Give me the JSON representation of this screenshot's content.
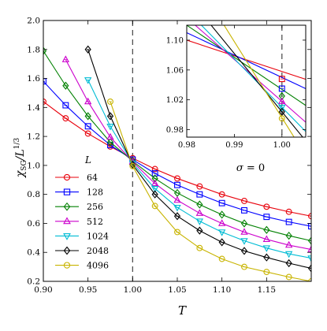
{
  "chart_data": [
    {
      "type": "line",
      "title": "",
      "xlabel": "T",
      "ylabel": "χSG/L^1/3",
      "ylabel_main": "χ",
      "ylabel_sub": "SG",
      "ylabel_mid": "/L",
      "ylabel_sup": "1/3",
      "xlim": [
        0.9,
        1.2
      ],
      "ylim": [
        0.2,
        2.0
      ],
      "xticks": [
        0.9,
        0.95,
        1.0,
        1.05,
        1.1,
        1.15
      ],
      "xtick_labels": [
        "0.90",
        "0.95",
        "1.00",
        "1.05",
        "1.10",
        "1.15"
      ],
      "yticks": [
        0.2,
        0.4,
        0.6,
        0.8,
        1.0,
        1.2,
        1.4,
        1.6,
        1.8,
        2.0
      ],
      "ytick_labels": [
        "0.2",
        "0.4",
        "0.6",
        "0.8",
        "1.0",
        "1.2",
        "1.4",
        "1.6",
        "1.8",
        "2.0"
      ],
      "vline_x": 1.0,
      "vline_style": "dashed",
      "legend_title": "L",
      "legend_position": "lower-left",
      "series": [
        {
          "name": "64",
          "color": "#e8000b",
          "marker": "circle",
          "x": [
            0.9,
            0.925,
            0.95,
            0.975,
            1.0,
            1.025,
            1.05,
            1.075,
            1.1,
            1.125,
            1.15,
            1.175,
            1.2
          ],
          "y": [
            1.44,
            1.325,
            1.22,
            1.13,
            1.05,
            0.975,
            0.91,
            0.855,
            0.8,
            0.755,
            0.715,
            0.68,
            0.65
          ]
        },
        {
          "name": "128",
          "color": "#0000ff",
          "marker": "square",
          "x": [
            0.9,
            0.925,
            0.95,
            0.975,
            1.0,
            1.025,
            1.05,
            1.075,
            1.1,
            1.125,
            1.15,
            1.175,
            1.2
          ],
          "y": [
            1.58,
            1.415,
            1.27,
            1.14,
            1.04,
            0.945,
            0.865,
            0.8,
            0.74,
            0.69,
            0.645,
            0.61,
            0.58
          ]
        },
        {
          "name": "256",
          "color": "#008000",
          "marker": "diamond",
          "x": [
            0.9,
            0.925,
            0.95,
            0.975,
            1.0,
            1.025,
            1.05,
            1.075,
            1.1,
            1.125,
            1.15,
            1.175,
            1.2
          ],
          "y": [
            1.79,
            1.55,
            1.34,
            1.16,
            1.03,
            0.91,
            0.81,
            0.73,
            0.66,
            0.6,
            0.555,
            0.515,
            0.48
          ]
        },
        {
          "name": "512",
          "color": "#cc00cc",
          "marker": "triangle-up",
          "x": [
            0.925,
            0.95,
            0.975,
            1.0,
            1.025,
            1.05,
            1.075,
            1.1,
            1.125,
            1.15,
            1.175,
            1.2
          ],
          "y": [
            1.73,
            1.44,
            1.195,
            1.025,
            0.875,
            0.76,
            0.67,
            0.6,
            0.54,
            0.49,
            0.45,
            0.42
          ]
        },
        {
          "name": "1024",
          "color": "#00bcd4",
          "marker": "triangle-down",
          "x": [
            0.95,
            0.975,
            1.0,
            1.025,
            1.05,
            1.075,
            1.1,
            1.125,
            1.15,
            1.175,
            1.2
          ],
          "y": [
            1.59,
            1.27,
            1.015,
            0.84,
            0.71,
            0.615,
            0.54,
            0.48,
            0.43,
            0.39,
            0.36
          ]
        },
        {
          "name": "2048",
          "color": "#000000",
          "marker": "diamond",
          "x": [
            0.95,
            0.975,
            1.0,
            1.025,
            1.05,
            1.075,
            1.1,
            1.125,
            1.15,
            1.175,
            1.2
          ],
          "y": [
            1.8,
            1.34,
            1.005,
            0.8,
            0.65,
            0.55,
            0.47,
            0.41,
            0.365,
            0.325,
            0.29
          ]
        },
        {
          "name": "4096",
          "color": "#c8b400",
          "marker": "circle",
          "x": [
            0.975,
            1.0,
            1.025,
            1.05,
            1.075,
            1.1,
            1.125,
            1.15,
            1.175,
            1.2
          ],
          "y": [
            1.44,
            0.995,
            0.72,
            0.54,
            0.43,
            0.355,
            0.3,
            0.265,
            0.23,
            0.2
          ]
        }
      ]
    },
    {
      "type": "line",
      "title": "",
      "annotation": "σ = 0",
      "xlim": [
        0.98,
        1.005
      ],
      "ylim": [
        0.97,
        1.12
      ],
      "xticks": [
        0.98,
        0.99,
        1.0
      ],
      "xtick_labels": [
        "0.98",
        "0.99",
        "1.00"
      ],
      "yticks": [
        0.98,
        1.02,
        1.06,
        1.1
      ],
      "ytick_labels": [
        "0.98",
        "1.02",
        "1.06",
        "1.10"
      ],
      "vline_x": 1.0,
      "vline_style": "dashed",
      "series": [
        {
          "name": "64",
          "color": "#e8000b",
          "marker": "square",
          "x": [
            1.0
          ],
          "y": [
            1.048
          ]
        },
        {
          "name": "128",
          "color": "#0000ff",
          "marker": "square",
          "x": [
            1.0
          ],
          "y": [
            1.035
          ]
        },
        {
          "name": "256",
          "color": "#008000",
          "marker": "diamond",
          "x": [
            1.0
          ],
          "y": [
            1.025
          ]
        },
        {
          "name": "512",
          "color": "#cc00cc",
          "marker": "triangle-up",
          "x": [
            1.0
          ],
          "y": [
            1.018
          ]
        },
        {
          "name": "1024",
          "color": "#00bcd4",
          "marker": "triangle-down",
          "x": [
            1.0
          ],
          "y": [
            1.01
          ]
        },
        {
          "name": "2048",
          "color": "#000000",
          "marker": "diamond",
          "x": [
            1.0
          ],
          "y": [
            1.004
          ]
        },
        {
          "name": "4096",
          "color": "#c8b400",
          "marker": "circle",
          "x": [
            1.0
          ],
          "y": [
            0.995
          ]
        }
      ],
      "lines": [
        {
          "name": "64",
          "color": "#e8000b",
          "y_at_xmin": 1.1,
          "slope": -2.1
        },
        {
          "name": "128",
          "color": "#0000ff",
          "y_at_xmin": 1.11,
          "slope": -3.0
        },
        {
          "name": "256",
          "color": "#008000",
          "y_at_xmin": 1.12,
          "slope": -4.3
        },
        {
          "name": "512",
          "color": "#cc00cc",
          "y_at_xmin": 1.13,
          "slope": -5.6
        },
        {
          "name": "1024",
          "color": "#00bcd4",
          "y_at_xmin": 1.14,
          "slope": -6.5
        },
        {
          "name": "2048",
          "color": "#000000",
          "y_at_xmin": 1.16,
          "slope": -7.8
        },
        {
          "name": "4096",
          "color": "#c8b400",
          "y_at_xmin": 1.2,
          "slope": -10.2
        }
      ]
    }
  ]
}
